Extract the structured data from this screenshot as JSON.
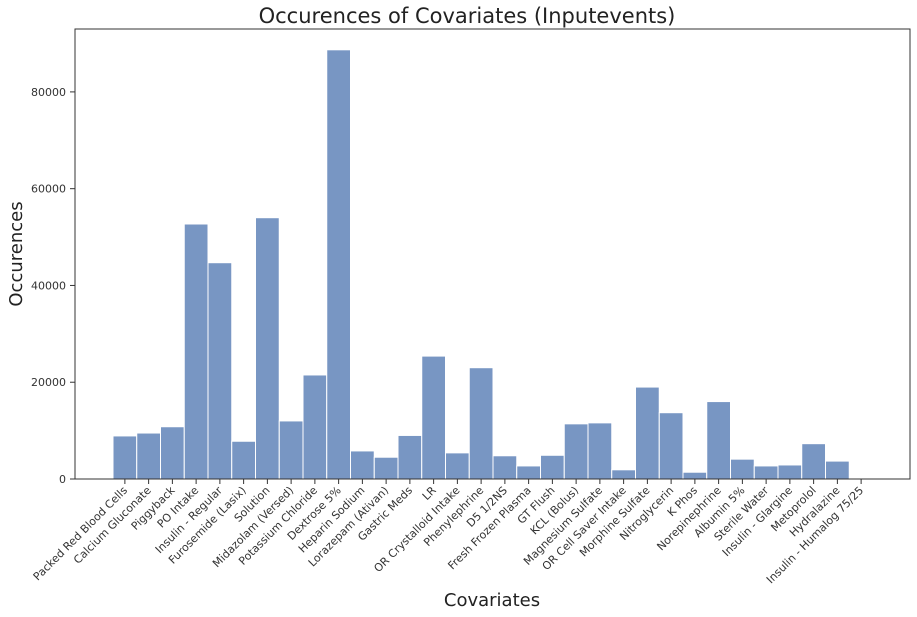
{
  "chart_data": {
    "type": "bar",
    "title": "Occurences of Covariates (Inputevents)",
    "xlabel": "Covariates",
    "ylabel": "Occurences",
    "ylim": [
      0,
      93000
    ],
    "yticks": [
      0,
      20000,
      40000,
      60000,
      80000
    ],
    "grid": false,
    "bar_color": "#7896c3",
    "categories": [
      "Packed Red Blood Cells",
      "Calcium Gluconate",
      "Piggyback",
      "PO Intake",
      "Insulin - Regular",
      "Furosemide (Lasix)",
      "Solution",
      "Midazolam (Versed)",
      "Potassium Chloride",
      "Dextrose 5%",
      "Heparin Sodium",
      "Lorazepam (Ativan)",
      "Gastric Meds",
      "LR",
      "OR Crystalloid Intake",
      "Phenylephrine",
      "D5 1/2NS",
      "Fresh Frozen Plasma",
      "GT Flush",
      "KCL (Bolus)",
      "Magnesium Sulfate",
      "OR Cell Saver Intake",
      "Morphine Sulfate",
      "Nitroglycerin",
      "K Phos",
      "Norepinephrine",
      "Albumin 5%",
      "Sterile Water",
      "Insulin - Glargine",
      "Metoprolol",
      "Hydralazine",
      "Insulin - Humalog 75/25"
    ],
    "values": [
      8900,
      9500,
      10800,
      52700,
      44700,
      7800,
      54000,
      12000,
      21500,
      88700,
      5800,
      4500,
      9000,
      25400,
      5400,
      23000,
      4800,
      2700,
      4900,
      11400,
      11600,
      1900,
      19000,
      13700,
      1400,
      16000,
      4100,
      2700,
      2900,
      7300,
      3700,
      0
    ]
  }
}
